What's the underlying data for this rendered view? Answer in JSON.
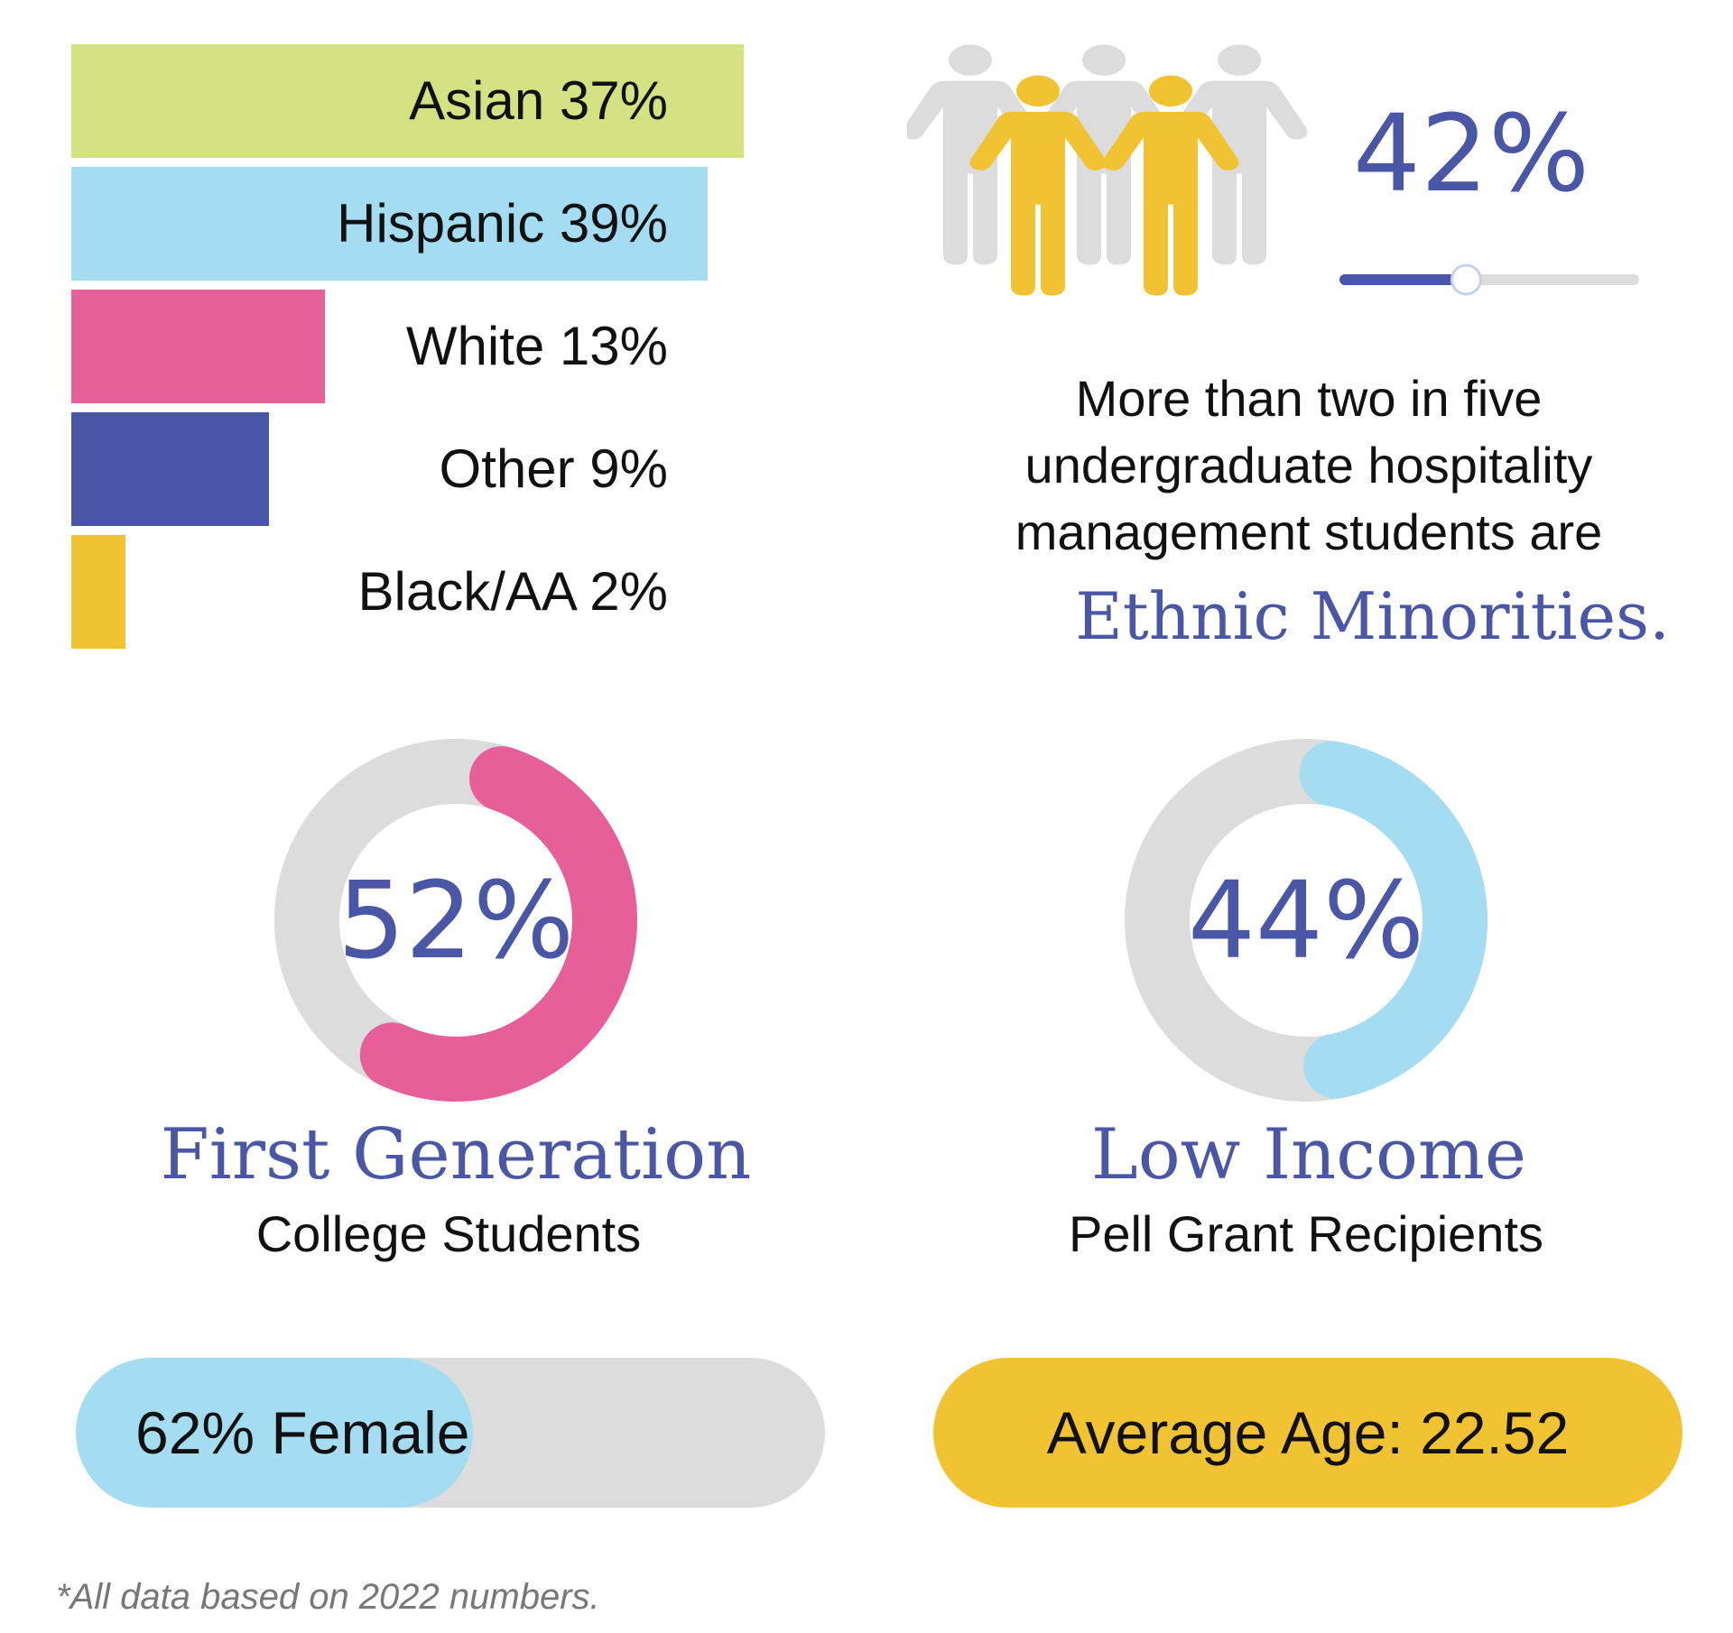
{
  "chart_data": [
    {
      "type": "bar",
      "categories": [
        "Asian",
        "Hispanic",
        "White",
        "Other",
        "Black/AA"
      ],
      "values": [
        37,
        39,
        13,
        9,
        2
      ],
      "labels": [
        "Asian 37%",
        "Hispanic 39%",
        "White 13%",
        "Other 9%",
        "Black/AA 2%"
      ],
      "colors": [
        "#d4e283",
        "#a4dcf2",
        "#e65f99",
        "#4a57a6",
        "#f1c232"
      ]
    },
    {
      "type": "gauge",
      "value": 42,
      "label": "42%",
      "colors": {
        "fill": "#4a57a6",
        "track": "#dcdcdc"
      }
    },
    {
      "type": "pie",
      "value": 52,
      "label": "52%",
      "colors": {
        "fill": "#e65f99",
        "track": "#dcdcdc"
      }
    },
    {
      "type": "pie",
      "value": 44,
      "label": "44%",
      "colors": {
        "fill": "#a4dcf2",
        "track": "#dcdcdc"
      }
    },
    {
      "type": "bar",
      "value": 62,
      "label": "62% Female",
      "colors": {
        "fill": "#a4dcf2",
        "track": "#dcdcdc"
      }
    }
  ],
  "minority": {
    "line1": "More than two in five",
    "line2": "undergraduate hospitality",
    "line3": "management students are",
    "accent": "Ethnic Minorities.",
    "people_icon_colors": {
      "back": "#dcdcdc",
      "front": "#f1c232"
    }
  },
  "first_gen": {
    "title": "First Generation",
    "subtitle": "College Students"
  },
  "low_income": {
    "title": "Low Income",
    "subtitle": "Pell Grant Recipients"
  },
  "age": {
    "label": "Average Age: 22.52",
    "color": "#f1c232"
  },
  "footnote": "*All data based on 2022 numbers."
}
